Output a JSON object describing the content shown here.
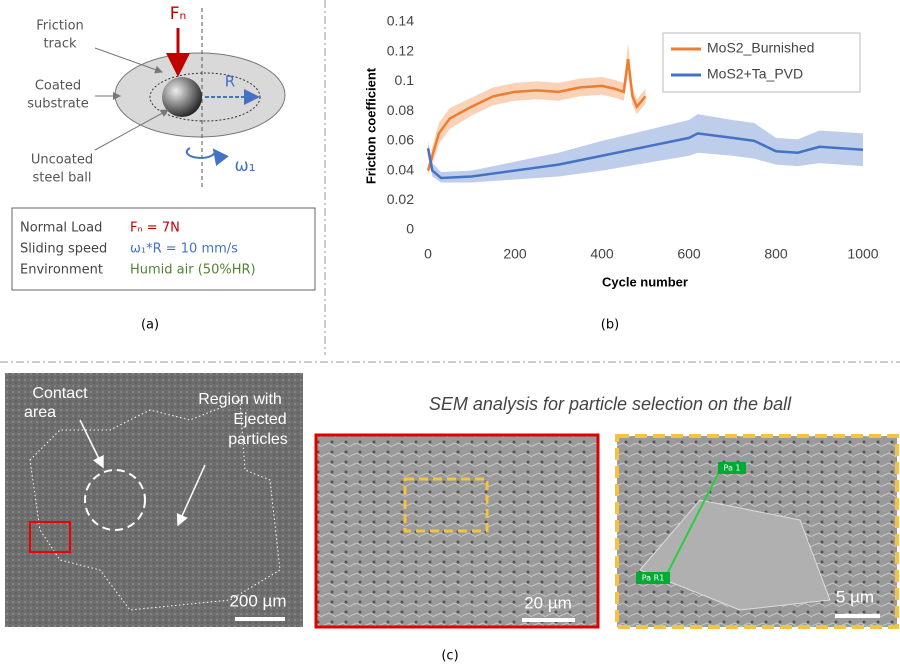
{
  "panel_a": {
    "labels": {
      "friction_track": [
        "Friction",
        "track"
      ],
      "coated_substrate": [
        "Coated",
        "substrate"
      ],
      "uncoated_ball": [
        "Uncoated",
        "steel ball"
      ],
      "force": "Fₙ",
      "radius": "R",
      "omega": "ω₁"
    },
    "conditions": [
      {
        "label": "Normal Load",
        "value": "Fₙ = 7N"
      },
      {
        "label": "Sliding speed",
        "value": "ω₁*R = 10 mm/s"
      },
      {
        "label": "Environment",
        "value": "Humid air (50%HR)"
      }
    ],
    "caption": "(a)"
  },
  "chart_data": {
    "type": "line",
    "ylabel": "Friction coefficient",
    "xlabel": "Cycle number",
    "xlim": [
      0,
      1000
    ],
    "xticks": [
      0,
      200,
      400,
      600,
      800,
      1000
    ],
    "ylim": [
      0,
      0.14
    ],
    "yticks": [
      0,
      0.02,
      0.04,
      0.06,
      0.08,
      0.1,
      0.12,
      0.14
    ],
    "legend": "upper right",
    "series": [
      {
        "name": "MoS2_Burnished",
        "color": "#ed7d31",
        "x": [
          0,
          10,
          25,
          50,
          100,
          150,
          200,
          250,
          300,
          350,
          400,
          430,
          450,
          460,
          470,
          480,
          500
        ],
        "values": [
          0.04,
          0.05,
          0.065,
          0.075,
          0.083,
          0.09,
          0.093,
          0.094,
          0.093,
          0.096,
          0.097,
          0.095,
          0.093,
          0.115,
          0.09,
          0.083,
          0.09
        ],
        "lower": [
          0.037,
          0.044,
          0.058,
          0.068,
          0.077,
          0.084,
          0.087,
          0.088,
          0.087,
          0.09,
          0.091,
          0.089,
          0.087,
          0.105,
          0.084,
          0.078,
          0.085
        ],
        "upper": [
          0.043,
          0.056,
          0.072,
          0.082,
          0.089,
          0.096,
          0.099,
          0.1,
          0.099,
          0.102,
          0.103,
          0.101,
          0.099,
          0.126,
          0.096,
          0.088,
          0.095
        ]
      },
      {
        "name": "MoS2+Ta_PVD",
        "color": "#4472c4",
        "x": [
          0,
          10,
          30,
          100,
          200,
          300,
          400,
          500,
          600,
          620,
          700,
          750,
          800,
          850,
          900,
          950,
          1000
        ],
        "values": [
          0.055,
          0.04,
          0.035,
          0.036,
          0.04,
          0.044,
          0.05,
          0.056,
          0.062,
          0.065,
          0.062,
          0.06,
          0.053,
          0.052,
          0.056,
          0.055,
          0.054
        ],
        "lower": [
          0.05,
          0.036,
          0.032,
          0.032,
          0.034,
          0.036,
          0.04,
          0.045,
          0.05,
          0.052,
          0.05,
          0.048,
          0.044,
          0.043,
          0.045,
          0.044,
          0.043
        ],
        "upper": [
          0.06,
          0.045,
          0.039,
          0.04,
          0.046,
          0.052,
          0.06,
          0.067,
          0.074,
          0.078,
          0.074,
          0.072,
          0.062,
          0.061,
          0.067,
          0.066,
          0.065
        ]
      }
    ],
    "caption": "(b)"
  },
  "panel_c": {
    "title": "SEM analysis for particle selection on the ball",
    "contact": [
      "Contact",
      "area"
    ],
    "region": [
      "Region with",
      "Ejected",
      "particles"
    ],
    "scales": [
      "200 µm",
      "20 µm",
      "5 µm"
    ],
    "markers": [
      "Pa 1",
      "Pa R1"
    ],
    "caption": "(c)"
  }
}
